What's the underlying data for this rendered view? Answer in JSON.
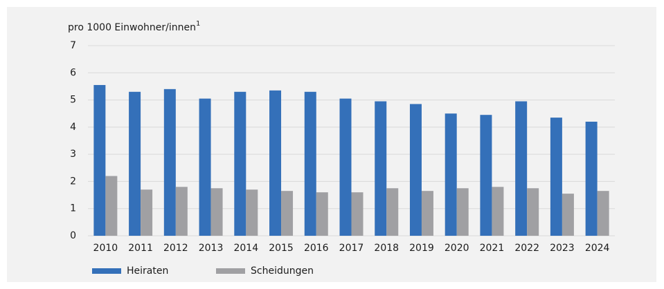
{
  "chart_data": {
    "type": "bar",
    "y_label": "pro 1000 Einwohner/innen",
    "y_label_footnote": "1",
    "categories": [
      "2010",
      "2011",
      "2012",
      "2013",
      "2014",
      "2015",
      "2016",
      "2017",
      "2018",
      "2019",
      "2020",
      "2021",
      "2022",
      "2023",
      "2024"
    ],
    "series": [
      {
        "name": "Heiraten",
        "color": "#3470b9",
        "values": [
          5.55,
          5.3,
          5.4,
          5.05,
          5.3,
          5.35,
          5.3,
          5.05,
          4.95,
          4.85,
          4.5,
          4.45,
          4.95,
          4.35,
          4.2
        ]
      },
      {
        "name": "Scheidungen",
        "color": "#a0a0a3",
        "values": [
          2.2,
          1.7,
          1.8,
          1.75,
          1.7,
          1.65,
          1.6,
          1.6,
          1.75,
          1.65,
          1.75,
          1.8,
          1.75,
          1.55,
          1.65
        ]
      }
    ],
    "ylim": [
      0,
      7
    ],
    "yticks": [
      0,
      1,
      2,
      3,
      4,
      5,
      6,
      7
    ],
    "grid": true,
    "legend": "bottom"
  }
}
